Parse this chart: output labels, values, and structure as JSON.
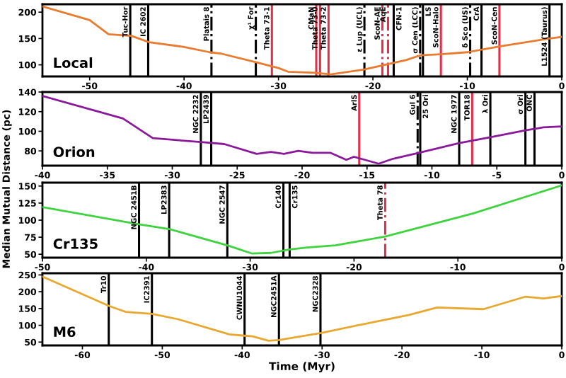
{
  "chart_data": [
    {
      "type": "line",
      "annotations": [
        "Local"
      ],
      "ylabel": "Median Mutual Distance (pc)",
      "xlim": [
        -55,
        0
      ],
      "xticks": [
        -50,
        -40,
        -30,
        -20,
        -10,
        0
      ],
      "ylim": [
        78,
        215
      ],
      "yticks": [
        100,
        150,
        200
      ],
      "grid": false,
      "legend": false,
      "series": [
        {
          "color": "#e87b2e",
          "x": [
            -55,
            -50,
            -48,
            -45.6,
            -43.7,
            -40,
            -37.3,
            -36,
            -32.4,
            -30,
            -29,
            -26,
            -24.5,
            -21,
            -18,
            -16.5,
            -15,
            -12.8,
            -10,
            -6.6,
            -1.3,
            0
          ],
          "values": [
            211,
            185,
            158,
            155,
            143,
            134,
            124,
            121,
            105,
            94,
            87,
            85,
            82,
            91,
            103,
            109,
            118,
            120,
            124,
            135,
            150,
            153
          ]
        }
      ],
      "ref_lines": [
        {
          "axis": "x",
          "value": -45.7,
          "label": "Tuc-Hor",
          "color": "#000000",
          "line_style": "solid"
        },
        {
          "axis": "x",
          "value": -43.8,
          "label": "IC 2602",
          "color": "#000000",
          "line_style": "solid"
        },
        {
          "axis": "x",
          "value": -37.1,
          "label": "Platais 8",
          "color": "#000000",
          "line_style": "dashed"
        },
        {
          "axis": "x",
          "value": -32.4,
          "label": "χ¹ For",
          "color": "#000000",
          "line_style": "dashed"
        },
        {
          "axis": "x",
          "value": -30.7,
          "label": "Theta 73-1",
          "color": "#e0304a",
          "line_style": "solid"
        },
        {
          "axis": "x",
          "value": -26.0,
          "label": "CMaN",
          "color": "#e0304a",
          "line_style": "solid"
        },
        {
          "axis": "x",
          "value": -25.6,
          "label": "Theta 73-0",
          "color": "#e0304a",
          "line_style": "solid"
        },
        {
          "axis": "x",
          "value": -24.7,
          "label": "Theta 73-2",
          "color": "#e0304a",
          "line_style": "solid"
        },
        {
          "axis": "x",
          "value": -20.9,
          "label": "ε Lup (UCL)",
          "color": "#000000",
          "line_style": "dashed"
        },
        {
          "axis": "x",
          "value": -19.0,
          "label": "ScoN-AE",
          "color": "#e0304a",
          "line_style": "dashed"
        },
        {
          "axis": "x",
          "value": -18.4,
          "label": "AqE",
          "color": "#e0304a",
          "line_style": "dashed"
        },
        {
          "axis": "x",
          "value": -17.8,
          "label": "CFN-1",
          "color": "#000000",
          "line_style": "solid"
        },
        {
          "axis": "x",
          "value": -15.0,
          "label": "σ Cen (LCC)",
          "color": "#000000",
          "line_style": "dashed"
        },
        {
          "axis": "x",
          "value": -14.7,
          "label": "LS",
          "color": "#000000",
          "line_style": "solid"
        },
        {
          "axis": "x",
          "value": -12.8,
          "label": "ScoN-Halo",
          "color": "#e0304a",
          "line_style": "solid"
        },
        {
          "axis": "x",
          "value": -9.7,
          "label": "δ Sco (US)",
          "color": "#000000",
          "line_style": "dashed"
        },
        {
          "axis": "x",
          "value": -8.5,
          "label": "CrA",
          "color": "#000000",
          "line_style": "solid"
        },
        {
          "axis": "x",
          "value": -6.6,
          "label": "ScoN-Cen",
          "color": "#e0304a",
          "line_style": "solid"
        },
        {
          "axis": "x",
          "value": -1.3,
          "label": "L1524 (Taurus)",
          "color": "#000000",
          "line_style": "solid"
        }
      ]
    },
    {
      "type": "line",
      "annotations": [
        "Orion"
      ],
      "xlim": [
        -40,
        0
      ],
      "xticks": [
        -40,
        -35,
        -30,
        -25,
        -20,
        -15,
        -10,
        -5,
        0
      ],
      "ylim": [
        65,
        140
      ],
      "yticks": [
        80,
        100,
        120,
        140
      ],
      "grid": false,
      "legend": false,
      "series": [
        {
          "color": "#8b1a9b",
          "x": [
            -40,
            -33.8,
            -31.5,
            -27.8,
            -26,
            -23.5,
            -22.4,
            -21.4,
            -20.3,
            -19.2,
            -17.8,
            -16.6,
            -16,
            -14.1,
            -13,
            -11,
            -7.9,
            -5.5,
            -2.8,
            -1.4,
            0
          ],
          "values": [
            136,
            113,
            93,
            89,
            87,
            77,
            79,
            77,
            80,
            78,
            78,
            71,
            74,
            67,
            72,
            78,
            88,
            94,
            101,
            104,
            105
          ]
        }
      ],
      "ref_lines": [
        {
          "axis": "x",
          "value": -27.8,
          "label": "NGC 2232",
          "color": "#000000",
          "line_style": "solid"
        },
        {
          "axis": "x",
          "value": -27.0,
          "label": "LP2439",
          "color": "#000000",
          "line_style": "solid"
        },
        {
          "axis": "x",
          "value": -15.6,
          "label": "ArlS",
          "color": "#e0304a",
          "line_style": "solid"
        },
        {
          "axis": "x",
          "value": -11.1,
          "label": "Gul 6",
          "color": "#000000",
          "line_style": "dashed"
        },
        {
          "axis": "x",
          "value": -10.9,
          "label": "25 Ori",
          "color": "#000000",
          "line_style": "solid"
        },
        {
          "axis": "x",
          "value": -7.9,
          "label": "NGC 1977",
          "color": "#000000",
          "line_style": "solid"
        },
        {
          "axis": "x",
          "value": -6.9,
          "label": "TOR18",
          "color": "#e0304a",
          "line_style": "solid"
        },
        {
          "axis": "x",
          "value": -5.5,
          "label": "λ Ori",
          "color": "#000000",
          "line_style": "solid"
        },
        {
          "axis": "x",
          "value": -2.8,
          "label": "σ Ori",
          "color": "#000000",
          "line_style": "solid"
        },
        {
          "axis": "x",
          "value": -2.1,
          "label": "ONC",
          "color": "#000000",
          "line_style": "solid"
        }
      ]
    },
    {
      "type": "line",
      "annotations": [
        "Cr135"
      ],
      "xlim": [
        -50,
        0
      ],
      "xticks": [
        -50,
        -40,
        -30,
        -20,
        -10,
        0
      ],
      "ylim": [
        45,
        155
      ],
      "yticks": [
        50,
        75,
        100,
        125,
        150
      ],
      "grid": false,
      "legend": false,
      "series": [
        {
          "color": "#3fd33f",
          "x": [
            -50,
            -40.7,
            -37.8,
            -32.2,
            -29.8,
            -28,
            -26.2,
            -24.5,
            -21.8,
            -17,
            -8.5,
            0
          ],
          "values": [
            119,
            94,
            87,
            63,
            51,
            52,
            57,
            60,
            63,
            76,
            110,
            151
          ]
        }
      ],
      "ref_lines": [
        {
          "axis": "x",
          "value": -40.7,
          "label": "NGC 2451B",
          "color": "#000000",
          "line_style": "solid"
        },
        {
          "axis": "x",
          "value": -37.8,
          "label": "LP2383",
          "color": "#000000",
          "line_style": "solid"
        },
        {
          "axis": "x",
          "value": -32.2,
          "label": "NGC 2547",
          "color": "#000000",
          "line_style": "solid"
        },
        {
          "axis": "x",
          "value": -26.8,
          "label": "Cr140",
          "color": "#000000",
          "line_style": "solid"
        },
        {
          "axis": "x",
          "value": -26.2,
          "label": "Cr135",
          "color": "#000000",
          "line_style": "solid"
        },
        {
          "axis": "x",
          "value": -17.0,
          "label": "Theta 78",
          "color": "#e0304a",
          "line_style": "dashed"
        }
      ]
    },
    {
      "type": "line",
      "annotations": [
        "M6"
      ],
      "xlabel": "Time (Myr)",
      "xlim": [
        -65,
        0
      ],
      "xticks": [
        -60,
        -50,
        -40,
        -30,
        -20,
        -10,
        0
      ],
      "ylim": [
        40,
        255
      ],
      "yticks": [
        50,
        100,
        150,
        200,
        250
      ],
      "grid": false,
      "legend": false,
      "series": [
        {
          "color": "#e8a830",
          "x": [
            -65,
            -56.6,
            -54.6,
            -51.3,
            -48,
            -41.6,
            -39.7,
            -38.7,
            -36.7,
            -35.4,
            -30.1,
            -24.9,
            -19.1,
            -15.6,
            -9.8,
            -4.6,
            -2.3,
            0
          ],
          "values": [
            245,
            157,
            140,
            134,
            118,
            73,
            69,
            67,
            54,
            56,
            77,
            103,
            131,
            153,
            148,
            185,
            180,
            187
          ]
        }
      ],
      "ref_lines": [
        {
          "axis": "x",
          "value": -56.7,
          "label": "Tr10",
          "color": "#000000",
          "line_style": "solid"
        },
        {
          "axis": "x",
          "value": -51.3,
          "label": "IC2391",
          "color": "#000000",
          "line_style": "solid"
        },
        {
          "axis": "x",
          "value": -39.7,
          "label": "CWNU1044",
          "color": "#000000",
          "line_style": "solid"
        },
        {
          "axis": "x",
          "value": -35.4,
          "label": "NGC2451A",
          "color": "#000000",
          "line_style": "solid"
        },
        {
          "axis": "x",
          "value": -30.2,
          "label": "NGC2328",
          "color": "#000000",
          "line_style": "solid"
        }
      ]
    }
  ]
}
